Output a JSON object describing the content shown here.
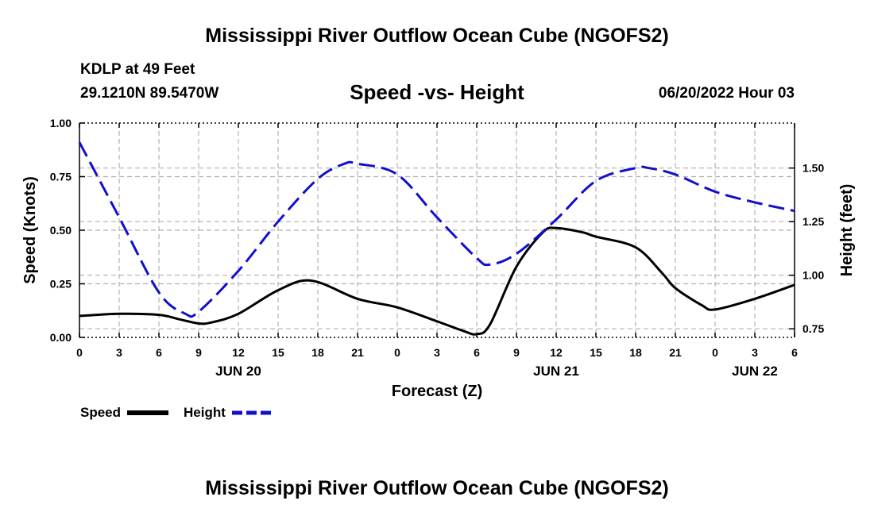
{
  "page": {
    "title": "Mississippi River Outflow Ocean Cube (NGOFS2)",
    "footer_title": "Mississippi River Outflow Ocean Cube (NGOFS2)",
    "station": "KDLP at 49 Feet",
    "coords": "29.1210N  89.5470W",
    "chart_title": "Speed -vs- Height",
    "datetime": "06/20/2022 Hour 03"
  },
  "legend": {
    "speed_label": "Speed",
    "height_label": "Height"
  },
  "colors": {
    "speed": "#000000",
    "height": "#1010cc",
    "grid": "#b0b0b0"
  },
  "chart_data": {
    "type": "line",
    "title": "Speed -vs- Height",
    "xlabel": "Forecast (Z)",
    "ylabel": "Speed (Knots)",
    "y2label": "Height (feet)",
    "xlim": [
      0,
      54
    ],
    "ylim": [
      0,
      1
    ],
    "y2lim": [
      0.71,
      1.71
    ],
    "grid": true,
    "x_ticks": [
      0,
      3,
      6,
      9,
      12,
      15,
      18,
      21,
      24,
      27,
      30,
      33,
      36,
      39,
      42,
      45,
      48,
      51,
      54
    ],
    "x_tick_labels": [
      "0",
      "3",
      "6",
      "9",
      "12",
      "15",
      "18",
      "21",
      "0",
      "3",
      "6",
      "9",
      "12",
      "15",
      "18",
      "21",
      "0",
      "3",
      "6"
    ],
    "y_ticks": [
      0,
      0.25,
      0.5,
      0.75,
      1.0
    ],
    "y_tick_labels": [
      "0.00",
      "0.25",
      "0.50",
      "0.75",
      "1.00"
    ],
    "y2_ticks": [
      0.75,
      1.0,
      1.25,
      1.5
    ],
    "y2_tick_labels": [
      "0.75",
      "1.00",
      "1.25",
      "1.50"
    ],
    "date_labels": [
      {
        "x": 12,
        "label": "JUN 20"
      },
      {
        "x": 36,
        "label": "JUN 21"
      },
      {
        "x": 51,
        "label": "JUN 22"
      }
    ],
    "series": [
      {
        "name": "Speed",
        "axis": "left",
        "style": "solid",
        "x": [
          0,
          3,
          6,
          7.5,
          9,
          10,
          12,
          15,
          17.5,
          21,
          24,
          27,
          29,
          30,
          31,
          33,
          35,
          36,
          38,
          39,
          42,
          44,
          45,
          47,
          48,
          51,
          54
        ],
        "values": [
          0.1,
          0.11,
          0.105,
          0.085,
          0.065,
          0.07,
          0.11,
          0.22,
          0.265,
          0.18,
          0.14,
          0.075,
          0.03,
          0.015,
          0.06,
          0.33,
          0.49,
          0.51,
          0.49,
          0.47,
          0.42,
          0.3,
          0.23,
          0.15,
          0.13,
          0.18,
          0.245
        ]
      },
      {
        "name": "Height",
        "axis": "right",
        "style": "dashed",
        "x": [
          0,
          3,
          6,
          8,
          9,
          12,
          15,
          18,
          20,
          21,
          24,
          27,
          30,
          31,
          33,
          36,
          39,
          42,
          43,
          45,
          48,
          51,
          54
        ],
        "values": [
          1.62,
          1.27,
          0.92,
          0.82,
          0.83,
          1.02,
          1.25,
          1.45,
          1.52,
          1.52,
          1.47,
          1.27,
          1.08,
          1.05,
          1.1,
          1.26,
          1.44,
          1.5,
          1.5,
          1.47,
          1.39,
          1.34,
          1.3
        ]
      }
    ]
  }
}
